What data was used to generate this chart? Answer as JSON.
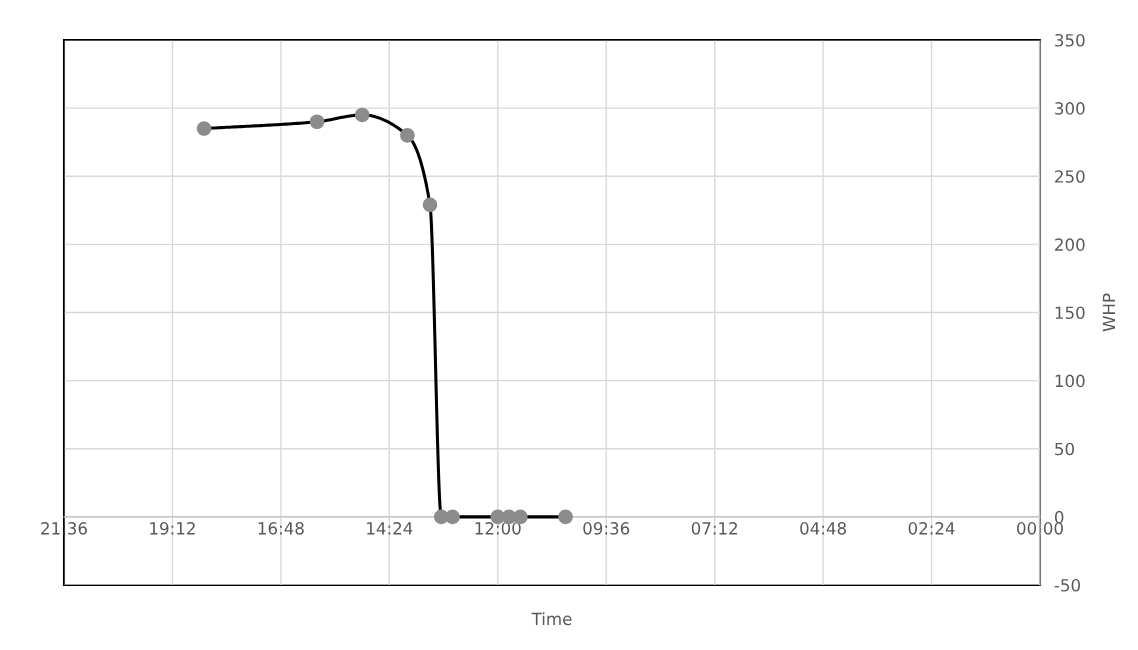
{
  "chart_data": {
    "type": "line",
    "xlabel": "Time",
    "ylabel": "WHP",
    "x": [
      18.5,
      16.0,
      15.0,
      14.0,
      13.5,
      13.25,
      13.0,
      12.0,
      11.75,
      11.5,
      10.5
    ],
    "series": [
      {
        "color": "#000000",
        "colors": [
          "#8c8c8c",
          "#8c8c8c",
          "#8c8c8c",
          "#8c8c8c",
          "#8c8c8c",
          "#8c8c8c",
          "#8c8c8c",
          "#8c8c8c",
          "#8c8c8c",
          "#8c8c8c",
          "#8c8c8c"
        ],
        "values": [
          285,
          290,
          295,
          280,
          229,
          0,
          0,
          0,
          0,
          0,
          0
        ]
      }
    ],
    "xlim": [
      21.6,
      0
    ],
    "xticks": [
      {
        "value": 21.6,
        "label": "21:36"
      },
      {
        "value": 19.2,
        "label": "19:12"
      },
      {
        "value": 16.8,
        "label": "16:48"
      },
      {
        "value": 14.4,
        "label": "14:24"
      },
      {
        "value": 12,
        "label": "12:00"
      },
      {
        "value": 9.6,
        "label": "09:36"
      },
      {
        "value": 7.2,
        "label": "07:12"
      },
      {
        "value": 4.8,
        "label": "04:48"
      },
      {
        "value": 2.4,
        "label": "02:24"
      },
      {
        "value": 0,
        "label": "00:00"
      }
    ],
    "ylim": [
      -50,
      350
    ],
    "yticks": [
      -50,
      0,
      50,
      100,
      150,
      200,
      250,
      300,
      350
    ],
    "grid": true,
    "marker": "circle",
    "line_style": "solid"
  }
}
